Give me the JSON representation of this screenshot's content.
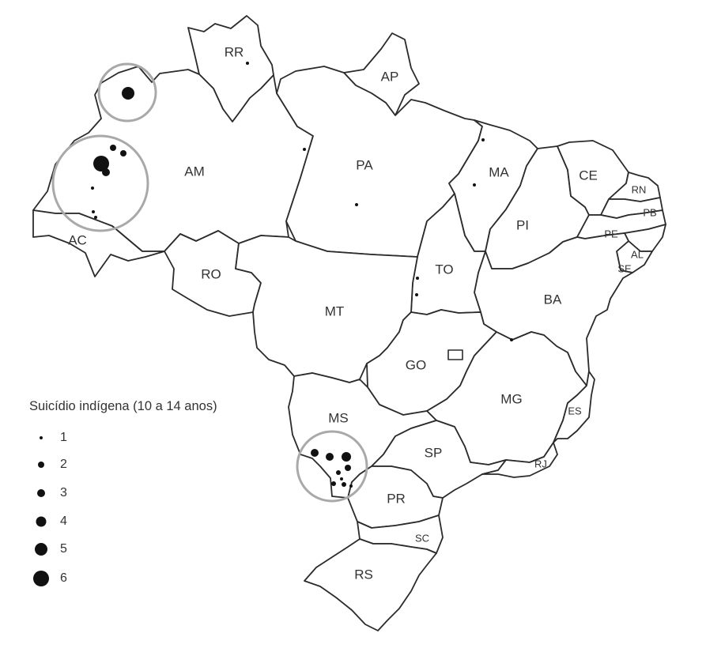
{
  "states": [
    "RR",
    "AP",
    "AM",
    "PA",
    "MA",
    "CE",
    "RN",
    "PB",
    "PI",
    "PE",
    "AL",
    "SE",
    "AC",
    "RO",
    "TO",
    "BA",
    "MT",
    "GO",
    "MG",
    "ES",
    "MS",
    "SP",
    "RJ",
    "PR",
    "SC",
    "RS"
  ],
  "legend": {
    "title": "Suicídio indígena (10 a 14 anos)",
    "items": [
      "1",
      "2",
      "3",
      "4",
      "5",
      "6"
    ]
  },
  "cases": [
    {
      "region": "AM",
      "count": 5
    },
    {
      "region": "AM",
      "count": 6
    },
    {
      "region": "AM",
      "count": 3
    },
    {
      "region": "AM",
      "count": 2
    },
    {
      "region": "AM",
      "count": 1
    },
    {
      "region": "AM",
      "count": 1
    },
    {
      "region": "AM",
      "count": 1
    },
    {
      "region": "AM",
      "count": 1
    },
    {
      "region": "RR",
      "count": 1
    },
    {
      "region": "PA",
      "count": 1
    },
    {
      "region": "PA",
      "count": 1
    },
    {
      "region": "MA",
      "count": 1
    },
    {
      "region": "MA",
      "count": 1
    },
    {
      "region": "TO",
      "count": 1
    },
    {
      "region": "TO",
      "count": 1
    },
    {
      "region": "BA",
      "count": 1
    },
    {
      "region": "MS",
      "count": 3
    },
    {
      "region": "MS",
      "count": 3
    },
    {
      "region": "MS",
      "count": 4
    },
    {
      "region": "MS",
      "count": 3
    },
    {
      "region": "MS",
      "count": 2
    },
    {
      "region": "MS",
      "count": 1
    },
    {
      "region": "MS",
      "count": 2
    },
    {
      "region": "MS",
      "count": 2
    },
    {
      "region": "MS",
      "count": 1
    }
  ],
  "colors": {
    "outline": "#2b2b2b",
    "dot": "#111111",
    "circle": "#a9a9a9"
  }
}
